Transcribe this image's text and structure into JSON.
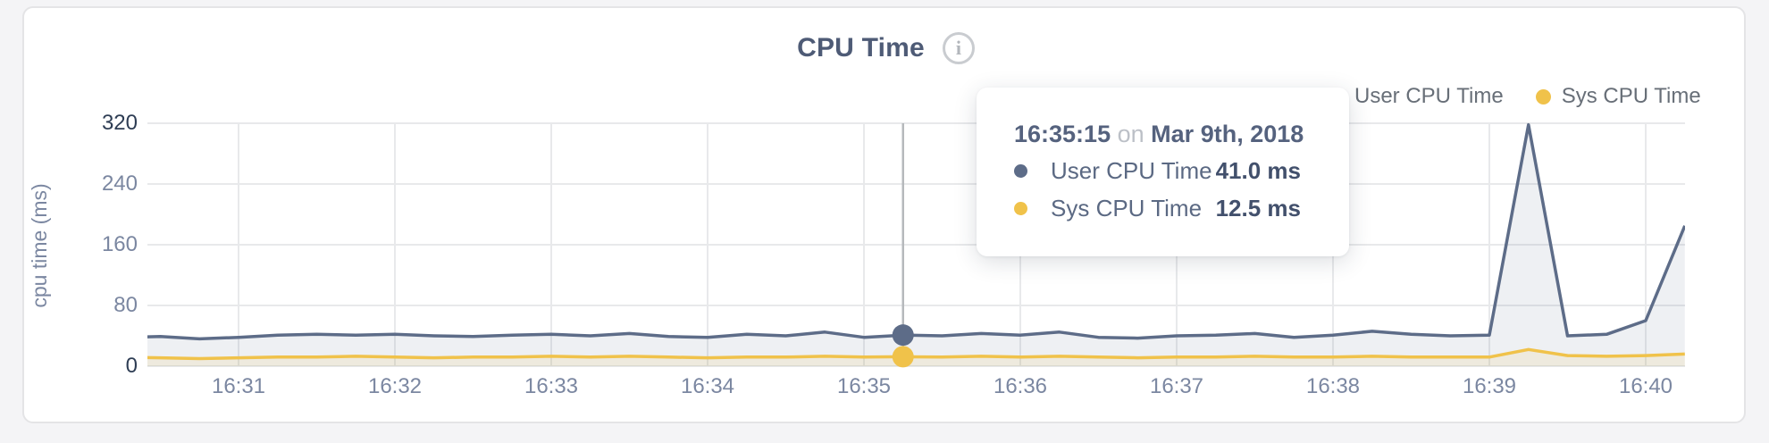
{
  "header": {
    "info_icon_glyph": "i"
  },
  "tooltip": {
    "time": "16:35:15",
    "conjunction": "on",
    "date": "Mar 9th, 2018",
    "rows": [
      {
        "label": "User CPU Time",
        "value": "41.0 ms"
      },
      {
        "label": "Sys CPU Time",
        "value": "12.5 ms"
      }
    ]
  },
  "colors": {
    "user_series": "#5d6c88",
    "sys_series": "#f0c24a",
    "user_fill": "rgba(93,108,136,0.10)",
    "sys_fill": "rgba(240,194,74,0.12)",
    "gridline": "#e8e9eb",
    "crosshair": "#b6b9bc"
  },
  "chart_data": {
    "type": "area",
    "title": "CPU Time",
    "ylabel": "cpu time (ms)",
    "xlabel": "",
    "unit": "ms",
    "ylim": [
      0,
      320
    ],
    "y_tick_labels": [
      "320",
      "240",
      "160",
      "80",
      "0"
    ],
    "y_tick_values": [
      320,
      240,
      160,
      80,
      0
    ],
    "x_tick_labels": [
      "16:31",
      "16:32",
      "16:33",
      "16:34",
      "16:35",
      "16:36",
      "16:37",
      "16:38",
      "16:39",
      "16:40"
    ],
    "grid": true,
    "legend_position": "top-right",
    "x": [
      "16:30:15",
      "16:30:30",
      "16:30:45",
      "16:31:00",
      "16:31:15",
      "16:31:30",
      "16:31:45",
      "16:32:00",
      "16:32:15",
      "16:32:30",
      "16:32:45",
      "16:33:00",
      "16:33:15",
      "16:33:30",
      "16:33:45",
      "16:34:00",
      "16:34:15",
      "16:34:30",
      "16:34:45",
      "16:35:00",
      "16:35:15",
      "16:35:30",
      "16:35:45",
      "16:36:00",
      "16:36:15",
      "16:36:30",
      "16:36:45",
      "16:37:00",
      "16:37:15",
      "16:37:30",
      "16:37:45",
      "16:38:00",
      "16:38:15",
      "16:38:30",
      "16:38:45",
      "16:39:00",
      "16:39:15",
      "16:39:30",
      "16:39:45",
      "16:40:00",
      "16:40:15"
    ],
    "series": [
      {
        "name": "User CPU Time",
        "color": "#5d6c88",
        "fill": "rgba(93,108,136,0.10)",
        "values": [
          38,
          39,
          36,
          38,
          41,
          42,
          41,
          42,
          40,
          39,
          41,
          42,
          40,
          43,
          39,
          38,
          42,
          40,
          45,
          38,
          41,
          40,
          43,
          41,
          45,
          38,
          37,
          40,
          41,
          43,
          38,
          41,
          46,
          42,
          40,
          41,
          318,
          40,
          42,
          60,
          185
        ]
      },
      {
        "name": "Sys CPU Time",
        "color": "#f0c24a",
        "fill": "rgba(240,194,74,0.12)",
        "values": [
          12,
          11,
          10,
          11,
          12,
          12,
          13,
          12,
          11,
          12,
          12,
          13,
          12,
          13,
          12,
          11,
          12,
          12,
          13,
          12,
          12.5,
          12,
          13,
          12,
          13,
          12,
          11,
          12,
          12,
          13,
          12,
          12,
          13,
          12,
          12,
          12,
          22,
          14,
          13,
          14,
          16
        ]
      }
    ],
    "highlight": {
      "time": "16:35:15",
      "values": [
        41.0,
        12.5
      ]
    }
  }
}
